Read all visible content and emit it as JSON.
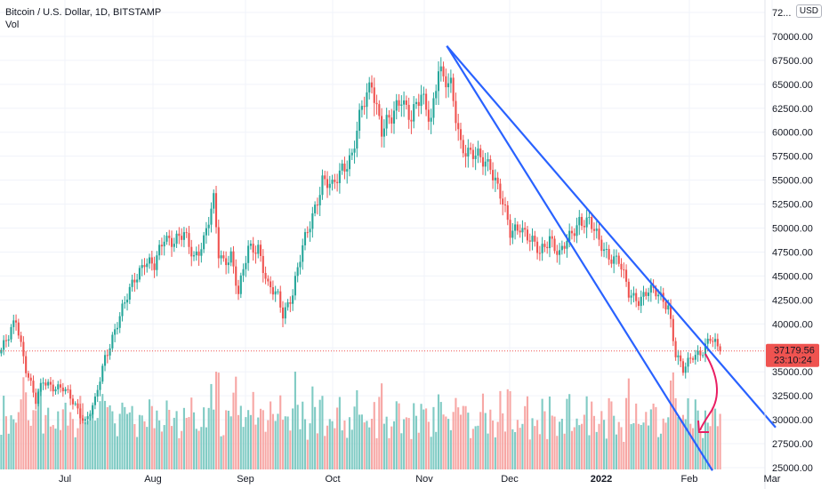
{
  "header": {
    "symbol_line": "Bitcoin / U.S. Dollar, 1D, BITSTAMP",
    "vol_label": "Vol"
  },
  "currency_badge": "USD",
  "colors": {
    "up": "#26a69a",
    "down": "#ef5350",
    "vol_up": "#80cbc4",
    "vol_down": "#f7a7a5",
    "trendline": "#2962ff",
    "annotation": "#e91e63",
    "price_tag": "#ef5350"
  },
  "price_tag": {
    "price": "37179.56",
    "countdown": "23:10:24"
  },
  "chart_data": {
    "type": "candlestick",
    "title": "Bitcoin / U.S. Dollar, 1D, BITSTAMP",
    "y_axis": {
      "ticks": [
        "25000.00",
        "27500.00",
        "30000.00",
        "32500.00",
        "35000.00",
        "37500.00",
        "40000.00",
        "42500.00",
        "45000.00",
        "47500.00",
        "50000.00",
        "52500.00",
        "55000.00",
        "57500.00",
        "60000.00",
        "62500.00",
        "65000.00",
        "67500.00",
        "70000.00",
        "72..."
      ],
      "range": [
        24700,
        72500
      ]
    },
    "x_axis": {
      "labels": [
        {
          "text": "Jul",
          "bold": false
        },
        {
          "text": "Aug",
          "bold": false
        },
        {
          "text": "Sep",
          "bold": false
        },
        {
          "text": "Oct",
          "bold": false
        },
        {
          "text": "Nov",
          "bold": false
        },
        {
          "text": "Dec",
          "bold": false
        },
        {
          "text": "2022",
          "bold": true
        },
        {
          "text": "Feb",
          "bold": false
        },
        {
          "text": "Mar",
          "bold": false
        }
      ]
    },
    "price_anchors": [
      [
        0,
        37300
      ],
      [
        3,
        38500
      ],
      [
        6,
        40500
      ],
      [
        10,
        35500
      ],
      [
        14,
        31800
      ],
      [
        17,
        34000
      ],
      [
        21,
        33600
      ],
      [
        25,
        33200
      ],
      [
        30,
        31500
      ],
      [
        34,
        29900
      ],
      [
        38,
        31800
      ],
      [
        42,
        36500
      ],
      [
        46,
        39500
      ],
      [
        50,
        42000
      ],
      [
        54,
        44800
      ],
      [
        58,
        46700
      ],
      [
        62,
        45800
      ],
      [
        66,
        49200
      ],
      [
        70,
        48800
      ],
      [
        74,
        49100
      ],
      [
        78,
        47000
      ],
      [
        82,
        48900
      ],
      [
        86,
        52600
      ],
      [
        88,
        47200
      ],
      [
        90,
        46600
      ],
      [
        93,
        47400
      ],
      [
        96,
        43000
      ],
      [
        100,
        47800
      ],
      [
        104,
        48200
      ],
      [
        108,
        43700
      ],
      [
        112,
        42800
      ],
      [
        114,
        41200
      ],
      [
        118,
        43300
      ],
      [
        122,
        47800
      ],
      [
        126,
        51500
      ],
      [
        130,
        55000
      ],
      [
        134,
        54000
      ],
      [
        138,
        56500
      ],
      [
        142,
        57600
      ],
      [
        146,
        62300
      ],
      [
        150,
        65500
      ],
      [
        154,
        60200
      ],
      [
        158,
        61200
      ],
      [
        162,
        64000
      ],
      [
        166,
        61500
      ],
      [
        170,
        63500
      ],
      [
        174,
        61600
      ],
      [
        177,
        67100
      ],
      [
        179,
        65200
      ],
      [
        182,
        64500
      ],
      [
        186,
        59000
      ],
      [
        190,
        57700
      ],
      [
        194,
        57000
      ],
      [
        198,
        56800
      ],
      [
        202,
        53500
      ],
      [
        206,
        49300
      ],
      [
        210,
        50500
      ],
      [
        214,
        48800
      ],
      [
        218,
        47200
      ],
      [
        222,
        49300
      ],
      [
        226,
        47100
      ],
      [
        230,
        48900
      ],
      [
        234,
        51000
      ],
      [
        238,
        50600
      ],
      [
        242,
        48500
      ],
      [
        246,
        47300
      ],
      [
        250,
        46500
      ],
      [
        254,
        43100
      ],
      [
        258,
        42700
      ],
      [
        262,
        43400
      ],
      [
        266,
        43000
      ],
      [
        270,
        42100
      ],
      [
        273,
        36800
      ],
      [
        276,
        35000
      ],
      [
        280,
        36900
      ],
      [
        284,
        37200
      ],
      [
        287,
        38300
      ],
      [
        289,
        37800
      ],
      [
        291,
        37180
      ]
    ],
    "trendlines": [
      {
        "from": [
          180,
          69000
        ],
        "to": [
          320,
          29200
        ]
      },
      {
        "from": [
          180,
          69000
        ],
        "to": [
          291,
          24700
        ]
      }
    ],
    "last_price": 37179.56
  }
}
